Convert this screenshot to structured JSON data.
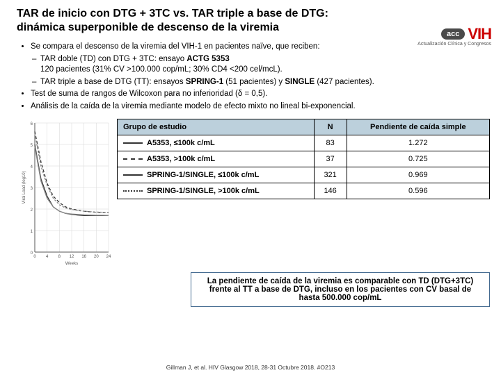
{
  "title_line1": "TAR de inicio con DTG + 3TC vs. TAR triple a base de DTG:",
  "title_line2": "dinámica superponible de descenso de la viremia",
  "logo": {
    "pill": "acc",
    "main": "VIH",
    "sub": "Actualización Clínica y Congresos"
  },
  "bullets": {
    "b1": "Se compara el descenso de la viremia del VIH-1 en pacientes naïve, que reciben:",
    "b1a_1": "TAR doble (TD) con DTG + 3TC: ensayo ",
    "b1a_bold": "ACTG 5353",
    "b1a_2": "120 pacientes (31% CV >100.000 cop/mL; 30% CD4 <200 cel/mcL).",
    "b1b_1": "TAR triple a base de DTG (TT): ensayos ",
    "b1b_bold1": "SPRING-1",
    "b1b_mid": " (51 pacientes) y ",
    "b1b_bold2": "SINGLE",
    "b1b_end": " (427 pacientes).",
    "b2": "Test de suma de rangos de Wilcoxon para no inferioridad (δ = 0,5).",
    "b3": "Análisis de la caída de la viremia mediante modelo de efecto mixto no lineal bi-exponencial."
  },
  "chart": {
    "ylabel": "Viral Load (log10)",
    "xlabel": "Weeks",
    "ylim": [
      0,
      6
    ],
    "xlim": [
      0,
      24
    ],
    "grid_color": "#d6d6d6",
    "background": "#ffffff",
    "series": [
      {
        "name": "A5353 ≤100k",
        "color": "#333333",
        "dash": "",
        "y": [
          5.0,
          3.4,
          2.6,
          2.1,
          1.9,
          1.8,
          1.75,
          1.72,
          1.7,
          1.7,
          1.7,
          1.7,
          1.7
        ]
      },
      {
        "name": "A5353 >100k",
        "color": "#333333",
        "dash": "4,3",
        "y": [
          5.6,
          4.2,
          3.2,
          2.6,
          2.3,
          2.1,
          2.0,
          1.95,
          1.9,
          1.87,
          1.85,
          1.84,
          1.83
        ]
      },
      {
        "name": "SPRING/SINGLE ≤100k",
        "color": "#888888",
        "dash": "",
        "y": [
          4.9,
          3.3,
          2.5,
          2.1,
          1.9,
          1.8,
          1.77,
          1.75,
          1.73,
          1.72,
          1.71,
          1.71,
          1.7
        ]
      },
      {
        "name": "SPRING/SINGLE >100k",
        "color": "#888888",
        "dash": "3,2",
        "y": [
          5.5,
          4.0,
          3.1,
          2.5,
          2.2,
          2.05,
          1.98,
          1.93,
          1.9,
          1.88,
          1.86,
          1.85,
          1.84
        ]
      }
    ],
    "xvals": [
      0,
      2,
      4,
      6,
      8,
      10,
      12,
      14,
      16,
      18,
      20,
      22,
      24
    ]
  },
  "table": {
    "headers": [
      "Grupo de estudio",
      "N",
      "Pendiente de caída simple"
    ],
    "rows": [
      {
        "legend": "solid",
        "label": "A5353, ≤100k c/mL",
        "n": "83",
        "slope": "1.272"
      },
      {
        "legend": "dashed",
        "label": "A5353, >100k c/mL",
        "n": "37",
        "slope": "0.725"
      },
      {
        "legend": "solid",
        "label": "SPRING-1/SINGLE, ≤100k c/mL",
        "n": "321",
        "slope": "0.969"
      },
      {
        "legend": "ldash",
        "label": "SPRING-1/SINGLE, >100k c/mL",
        "n": "146",
        "slope": "0.596"
      }
    ]
  },
  "callout": "La pendiente de caída de la viremia es comparable con TD (DTG+3TC) frente al TT a base de DTG, incluso en los pacientes con CV basal de hasta 500.000 cop/mL",
  "citation": "Gillman J, et al. HIV Glasgow 2018, 28-31 Octubre 2018. #O213"
}
